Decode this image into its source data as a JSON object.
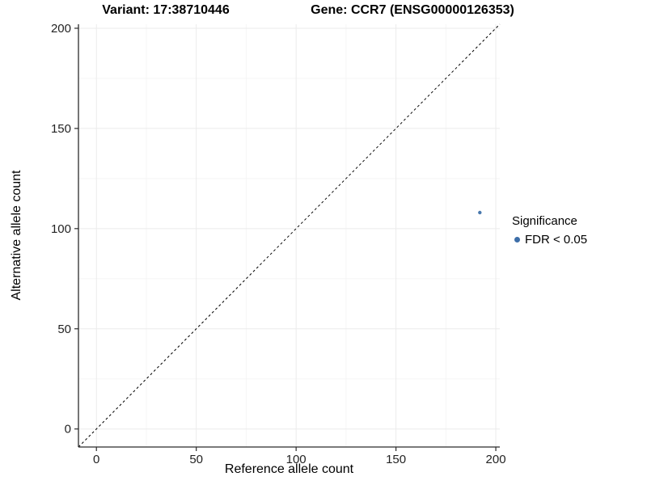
{
  "titles": {
    "variant": "Variant: 17:38710446",
    "gene": "Gene: CCR7 (ENSG00000126353)"
  },
  "chart_data": {
    "type": "scatter",
    "title_left": "Variant: 17:38710446",
    "title_right": "Gene: CCR7 (ENSG00000126353)",
    "xlabel": "Reference allele count",
    "ylabel": "Alternative allele count",
    "xlim": [
      -9,
      202
    ],
    "ylim": [
      -9,
      202
    ],
    "xticks": [
      0,
      50,
      100,
      150,
      200
    ],
    "yticks": [
      0,
      50,
      100,
      150,
      200
    ],
    "minor_ticks": [
      25,
      75,
      125,
      175
    ],
    "grid": "major and minor gridlines, very light gray, white background",
    "reference_line": {
      "kind": "diagonal y=x",
      "style": "dashed",
      "color": "#000000"
    },
    "series": [
      {
        "name": "FDR < 0.05",
        "color": "#4878ad",
        "points": [
          {
            "x": 192,
            "y": 108
          }
        ]
      }
    ],
    "legend": {
      "title": "Significance",
      "position": "right",
      "items": [
        {
          "label": "FDR < 0.05",
          "color": "#3d6ea8"
        }
      ]
    },
    "colors": {
      "axis_line": "#2b2b2b",
      "major_grid": "#ebebeb",
      "minor_grid": "#f5f5f5",
      "tick_text": "#232323",
      "point": "#4878ad"
    }
  }
}
